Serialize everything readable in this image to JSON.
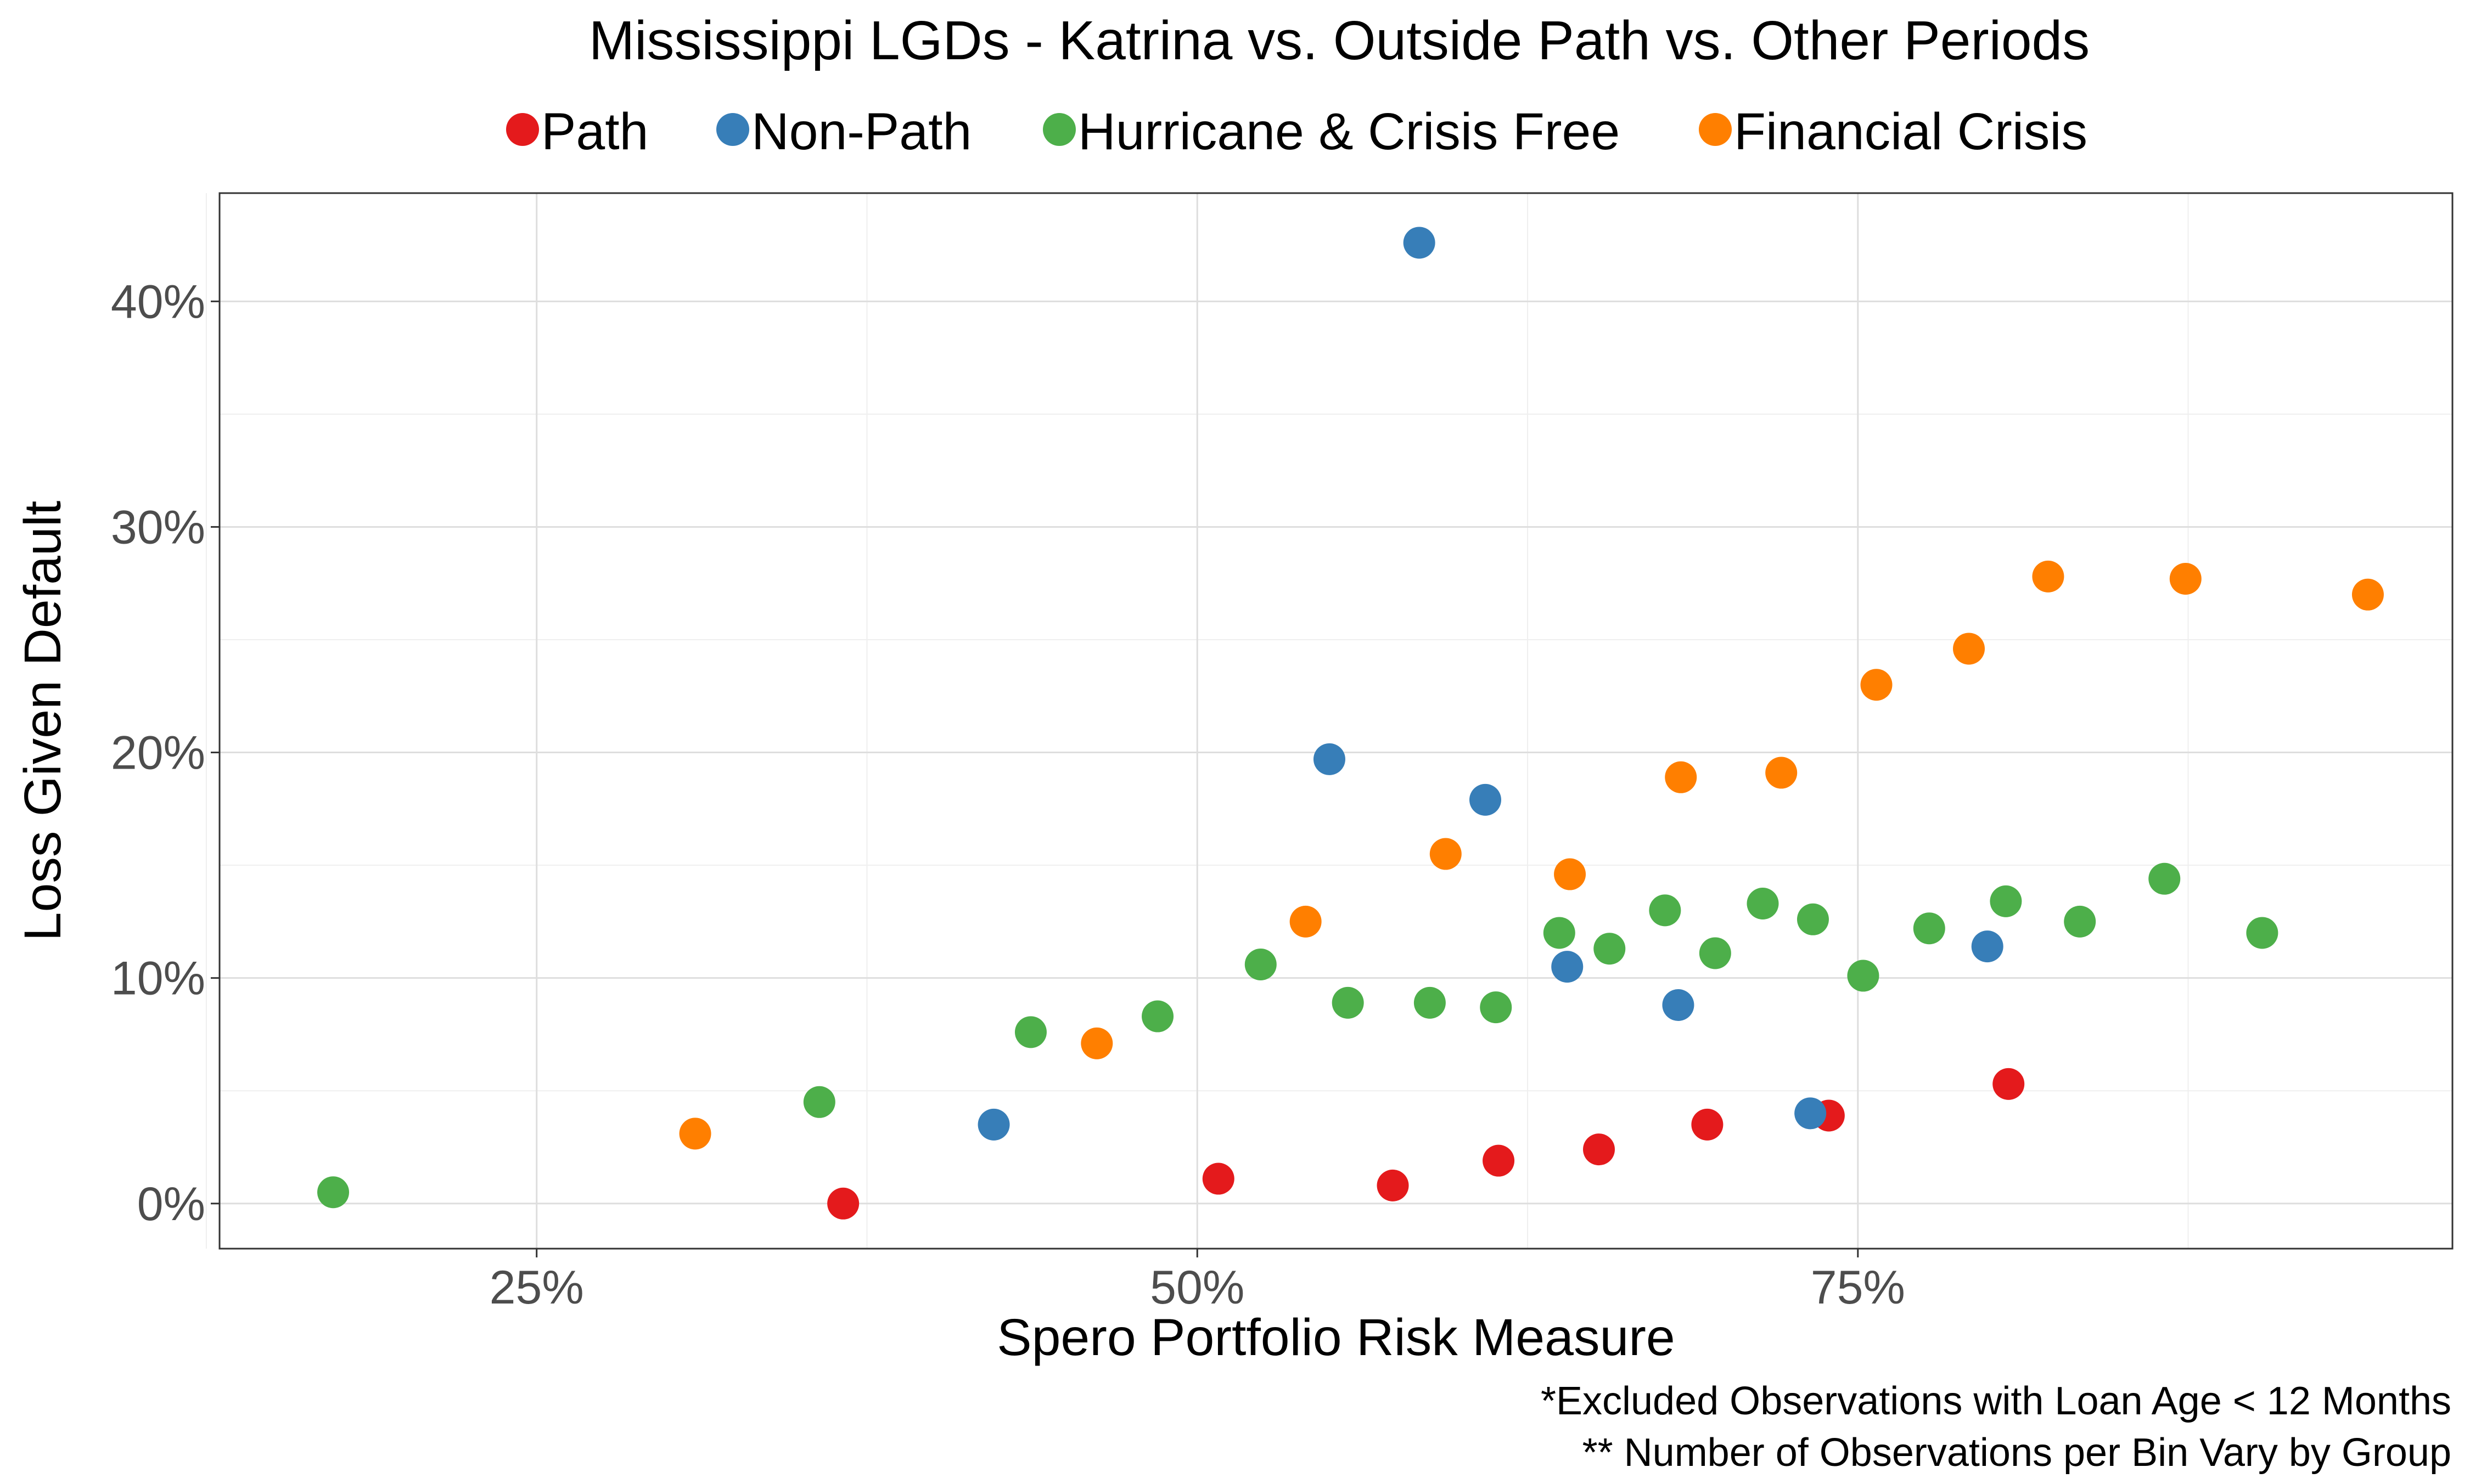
{
  "chart_data": {
    "type": "scatter",
    "title": "Mississippi LGDs - Katrina vs. Outside Path vs. Other Periods",
    "xlabel": "Spero Portfolio Risk Measure",
    "ylabel": "Loss Given Default",
    "xlim": [
      0.13,
      0.975
    ],
    "ylim": [
      -0.02,
      0.448
    ],
    "x_ticks": [
      {
        "value": 0.25,
        "label": "25%"
      },
      {
        "value": 0.5,
        "label": "50%"
      },
      {
        "value": 0.75,
        "label": "75%"
      }
    ],
    "y_ticks": [
      {
        "value": 0.0,
        "label": "0%"
      },
      {
        "value": 0.1,
        "label": "10%"
      },
      {
        "value": 0.2,
        "label": "20%"
      },
      {
        "value": 0.3,
        "label": "30%"
      },
      {
        "value": 0.4,
        "label": "40%"
      }
    ],
    "x_minor": [
      0.125,
      0.375,
      0.625,
      0.875
    ],
    "y_minor": [
      0.05,
      0.15,
      0.25,
      0.35
    ],
    "grid": true,
    "legend_position": "top",
    "captions": [
      "*Excluded Observations with Loan Age < 12 Months",
      "** Number of Observations per Bin Vary by Group"
    ],
    "series": [
      {
        "name": "Path",
        "color": "#e41a1c",
        "points": [
          {
            "x": 0.366,
            "y": 0.0
          },
          {
            "x": 0.508,
            "y": 0.011
          },
          {
            "x": 0.574,
            "y": 0.008
          },
          {
            "x": 0.614,
            "y": 0.019
          },
          {
            "x": 0.652,
            "y": 0.024
          },
          {
            "x": 0.693,
            "y": 0.035
          },
          {
            "x": 0.739,
            "y": 0.039
          },
          {
            "x": 0.807,
            "y": 0.053
          }
        ]
      },
      {
        "name": "Non-Path",
        "color": "#377eb8",
        "points": [
          {
            "x": 0.423,
            "y": 0.035
          },
          {
            "x": 0.55,
            "y": 0.197
          },
          {
            "x": 0.584,
            "y": 0.426
          },
          {
            "x": 0.609,
            "y": 0.179
          },
          {
            "x": 0.64,
            "y": 0.105
          },
          {
            "x": 0.682,
            "y": 0.088
          },
          {
            "x": 0.732,
            "y": 0.04
          },
          {
            "x": 0.799,
            "y": 0.114
          }
        ]
      },
      {
        "name": "Hurricane & Crisis Free",
        "color": "#4daf4a",
        "points": [
          {
            "x": 0.173,
            "y": 0.005
          },
          {
            "x": 0.357,
            "y": 0.045
          },
          {
            "x": 0.437,
            "y": 0.076
          },
          {
            "x": 0.485,
            "y": 0.083
          },
          {
            "x": 0.524,
            "y": 0.106
          },
          {
            "x": 0.557,
            "y": 0.089
          },
          {
            "x": 0.588,
            "y": 0.089
          },
          {
            "x": 0.613,
            "y": 0.087
          },
          {
            "x": 0.637,
            "y": 0.12
          },
          {
            "x": 0.656,
            "y": 0.113
          },
          {
            "x": 0.677,
            "y": 0.13
          },
          {
            "x": 0.696,
            "y": 0.111
          },
          {
            "x": 0.714,
            "y": 0.133
          },
          {
            "x": 0.733,
            "y": 0.126
          },
          {
            "x": 0.752,
            "y": 0.101
          },
          {
            "x": 0.777,
            "y": 0.122
          },
          {
            "x": 0.806,
            "y": 0.134
          },
          {
            "x": 0.834,
            "y": 0.125
          },
          {
            "x": 0.866,
            "y": 0.144
          },
          {
            "x": 0.903,
            "y": 0.12
          }
        ]
      },
      {
        "name": "Financial Crisis",
        "color": "#ff7f00",
        "points": [
          {
            "x": 0.31,
            "y": 0.031
          },
          {
            "x": 0.462,
            "y": 0.071
          },
          {
            "x": 0.541,
            "y": 0.125
          },
          {
            "x": 0.594,
            "y": 0.155
          },
          {
            "x": 0.641,
            "y": 0.146
          },
          {
            "x": 0.683,
            "y": 0.189
          },
          {
            "x": 0.721,
            "y": 0.191
          },
          {
            "x": 0.757,
            "y": 0.23
          },
          {
            "x": 0.792,
            "y": 0.246
          },
          {
            "x": 0.822,
            "y": 0.278
          },
          {
            "x": 0.874,
            "y": 0.277
          },
          {
            "x": 0.943,
            "y": 0.27
          }
        ]
      }
    ]
  }
}
